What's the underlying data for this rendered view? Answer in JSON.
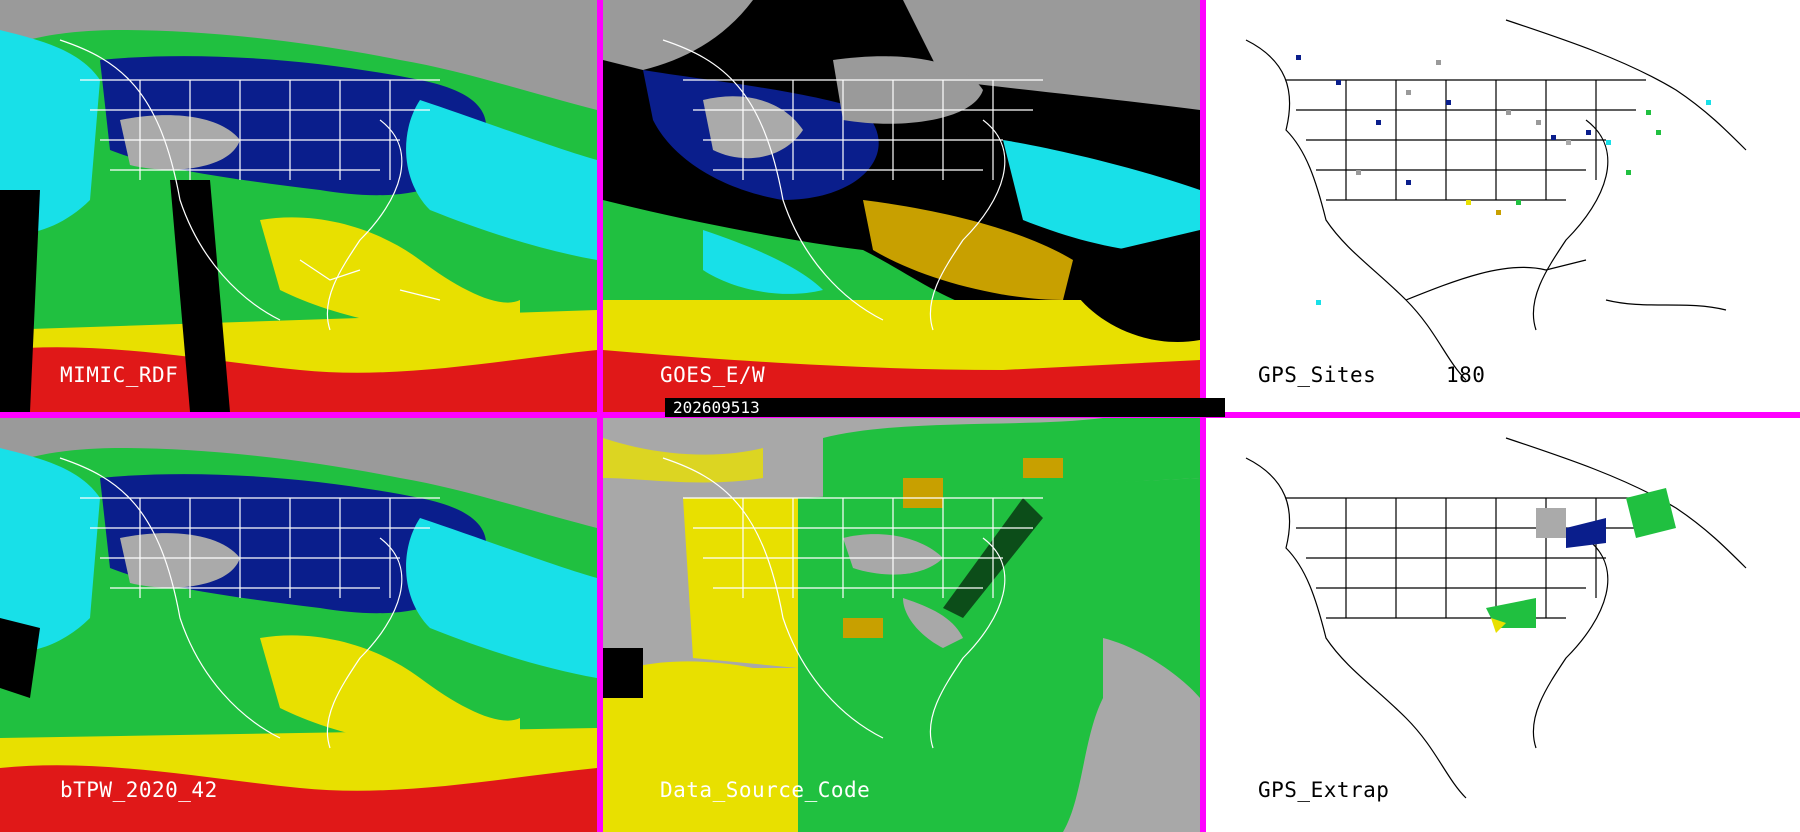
{
  "panels": {
    "mimic_rdf": {
      "label": "MIMIC_RDF"
    },
    "goes_ew": {
      "label": "GOES_E/W"
    },
    "gps_sites": {
      "label": "GPS_Sites",
      "count": "180"
    },
    "btpw": {
      "label": "bTPW_2020_42"
    },
    "data_source_code": {
      "label": "Data_Source_Code"
    },
    "gps_extrap": {
      "label": "GPS_Extrap"
    }
  },
  "timestamp": "202609513",
  "colors": {
    "divider": "#ff00ff",
    "tpw_scale": [
      "#9a9a9a",
      "#0a1e8c",
      "#2456d6",
      "#18e0e8",
      "#20c040",
      "#50e030",
      "#e8e000",
      "#c8a000",
      "#e01818",
      "#000000"
    ]
  }
}
